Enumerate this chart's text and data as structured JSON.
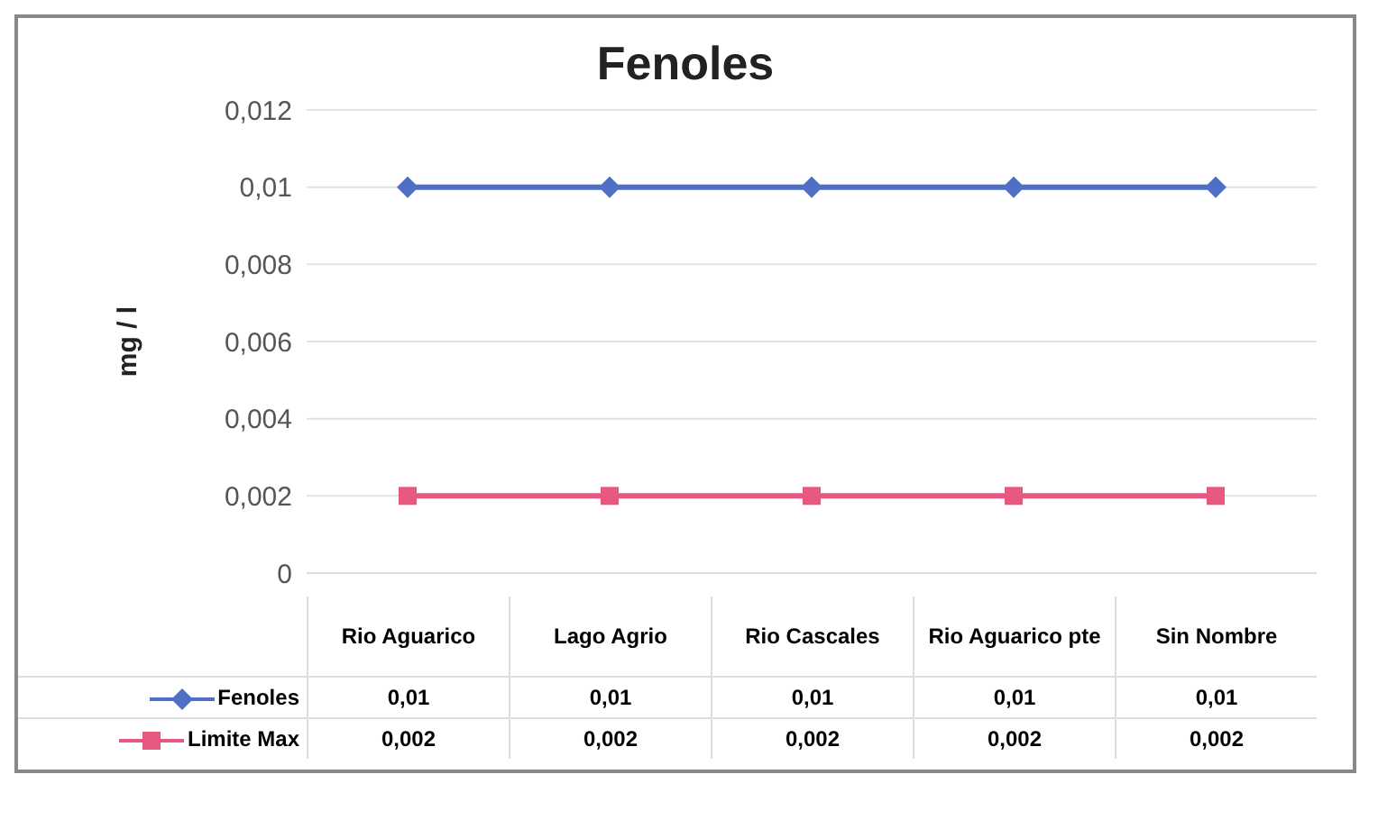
{
  "chart_data": {
    "type": "line",
    "title": "Fenoles",
    "ylabel": "mg / l",
    "categories": [
      "Rio Aguarico",
      "Lago Agrio",
      "Rio Cascales",
      "Rio Aguarico pte",
      "Sin Nombre"
    ],
    "series": [
      {
        "name": "Fenoles",
        "color": "#4f6fc6",
        "marker": "diamond",
        "values": [
          0.01,
          0.01,
          0.01,
          0.01,
          0.01
        ],
        "value_labels": [
          "0,01",
          "0,01",
          "0,01",
          "0,01",
          "0,01"
        ]
      },
      {
        "name": "Limite Max",
        "color": "#e8587e",
        "marker": "square",
        "values": [
          0.002,
          0.002,
          0.002,
          0.002,
          0.002
        ],
        "value_labels": [
          "0,002",
          "0,002",
          "0,002",
          "0,002",
          "0,002"
        ]
      }
    ],
    "ylim": [
      0,
      0.012
    ],
    "yticks": [
      {
        "value": 0,
        "label": "0"
      },
      {
        "value": 0.002,
        "label": "0,002"
      },
      {
        "value": 0.004,
        "label": "0,004"
      },
      {
        "value": 0.006,
        "label": "0,006"
      },
      {
        "value": 0.008,
        "label": "0,008"
      },
      {
        "value": 0.01,
        "label": "0,01"
      },
      {
        "value": 0.012,
        "label": "0,012"
      }
    ],
    "grid": "y",
    "legend": "bottom",
    "line_style": "solid"
  }
}
